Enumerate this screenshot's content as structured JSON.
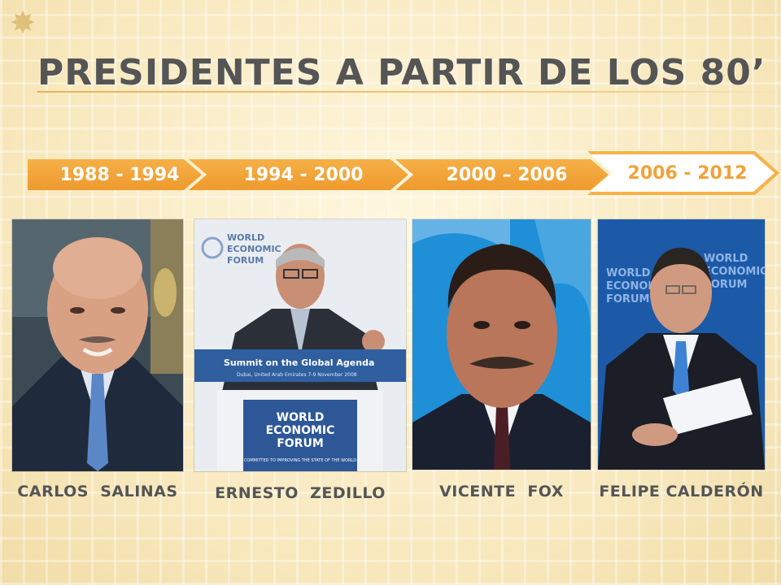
{
  "slide": {
    "title": "PRESIDENTES A PARTIR DE LOS 80’",
    "bullet_icon": "star-bullet-icon"
  },
  "timeline": [
    {
      "label": "1988 - 1994"
    },
    {
      "label": "1994 - 2000"
    },
    {
      "label": "2000 – 2006"
    },
    {
      "label": "2006 - 2012"
    }
  ],
  "presidents": [
    {
      "name": "CARLOS  SALINAS"
    },
    {
      "name": "ERNESTO  ZEDILLO"
    },
    {
      "name": "VICENTE  FOX"
    },
    {
      "name": "FELIPE CALDERÓN"
    }
  ],
  "photo_text": {
    "wef_logo": "WORLD\nECONOMIC\nFORUM",
    "banner": "Summit on the Global Agenda",
    "banner_sub": "Dubai, United Arab Emirates 7-9 November 2008",
    "podium_tag": "COMMITTED TO IMPROVING THE STATE OF THE WORLD"
  },
  "colors": {
    "accent_orange": "#f0a23a",
    "title_gray": "#555555",
    "background": "#fbf0cf"
  }
}
